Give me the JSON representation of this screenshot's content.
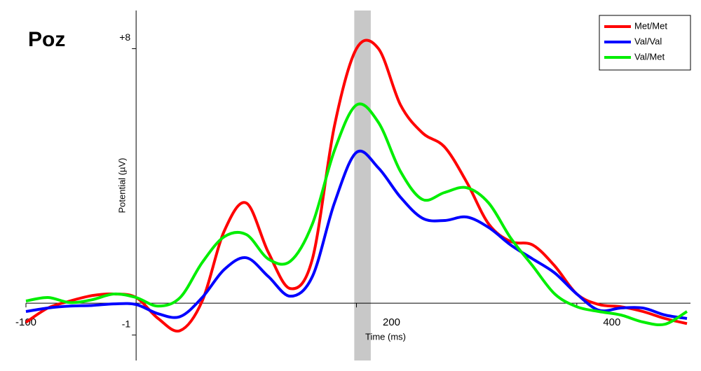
{
  "chart_data": {
    "type": "line",
    "title": "Poz",
    "x_label": "Time (ms)",
    "y_label": "Potential (µV)",
    "x": [
      -100,
      -80,
      -60,
      -40,
      -20,
      0,
      20,
      40,
      60,
      80,
      100,
      120,
      140,
      160,
      180,
      200,
      220,
      240,
      260,
      280,
      300,
      320,
      340,
      360,
      380,
      400,
      420,
      440,
      460,
      480,
      500
    ],
    "series": [
      {
        "name": "Met/Met",
        "color": "#ff0000",
        "values": [
          -0.6,
          -0.15,
          0.07,
          0.24,
          0.29,
          0.18,
          -0.48,
          -0.86,
          0.07,
          2.27,
          3.15,
          1.6,
          0.46,
          1.39,
          5.57,
          8.0,
          8.0,
          6.23,
          5.35,
          4.91,
          3.81,
          2.49,
          1.94,
          1.83,
          1.17,
          0.29,
          -0.04,
          -0.11,
          -0.26,
          -0.48,
          -0.64
        ]
      },
      {
        "name": "Val/Val",
        "color": "#0000ff",
        "values": [
          -0.26,
          -0.15,
          -0.09,
          -0.07,
          -0.02,
          -0.04,
          -0.33,
          -0.42,
          0.18,
          1.06,
          1.43,
          0.84,
          0.22,
          0.84,
          3.15,
          4.74,
          4.25,
          3.33,
          2.67,
          2.6,
          2.71,
          2.38,
          1.83,
          1.39,
          0.95,
          0.29,
          -0.22,
          -0.15,
          -0.15,
          -0.37,
          -0.48
        ]
      },
      {
        "name": "Val/Met",
        "color": "#00ee00",
        "values": [
          0.07,
          0.18,
          0.02,
          0.11,
          0.29,
          0.18,
          -0.09,
          0.18,
          1.28,
          2.09,
          2.16,
          1.39,
          1.32,
          2.49,
          4.8,
          6.23,
          5.68,
          4.14,
          3.26,
          3.48,
          3.63,
          3.15,
          2.05,
          1.17,
          0.29,
          -0.11,
          -0.26,
          -0.37,
          -0.59,
          -0.66,
          -0.26
        ]
      }
    ],
    "shaded_range": [
      198,
      213
    ],
    "xlim": [
      -100,
      500
    ],
    "ylim": [
      -1.8,
      9.2
    ],
    "xticks": [
      -100,
      200,
      400
    ],
    "yticks": [
      {
        "value": 8,
        "label": "+8"
      },
      -1
    ],
    "legend": "upper-right"
  }
}
